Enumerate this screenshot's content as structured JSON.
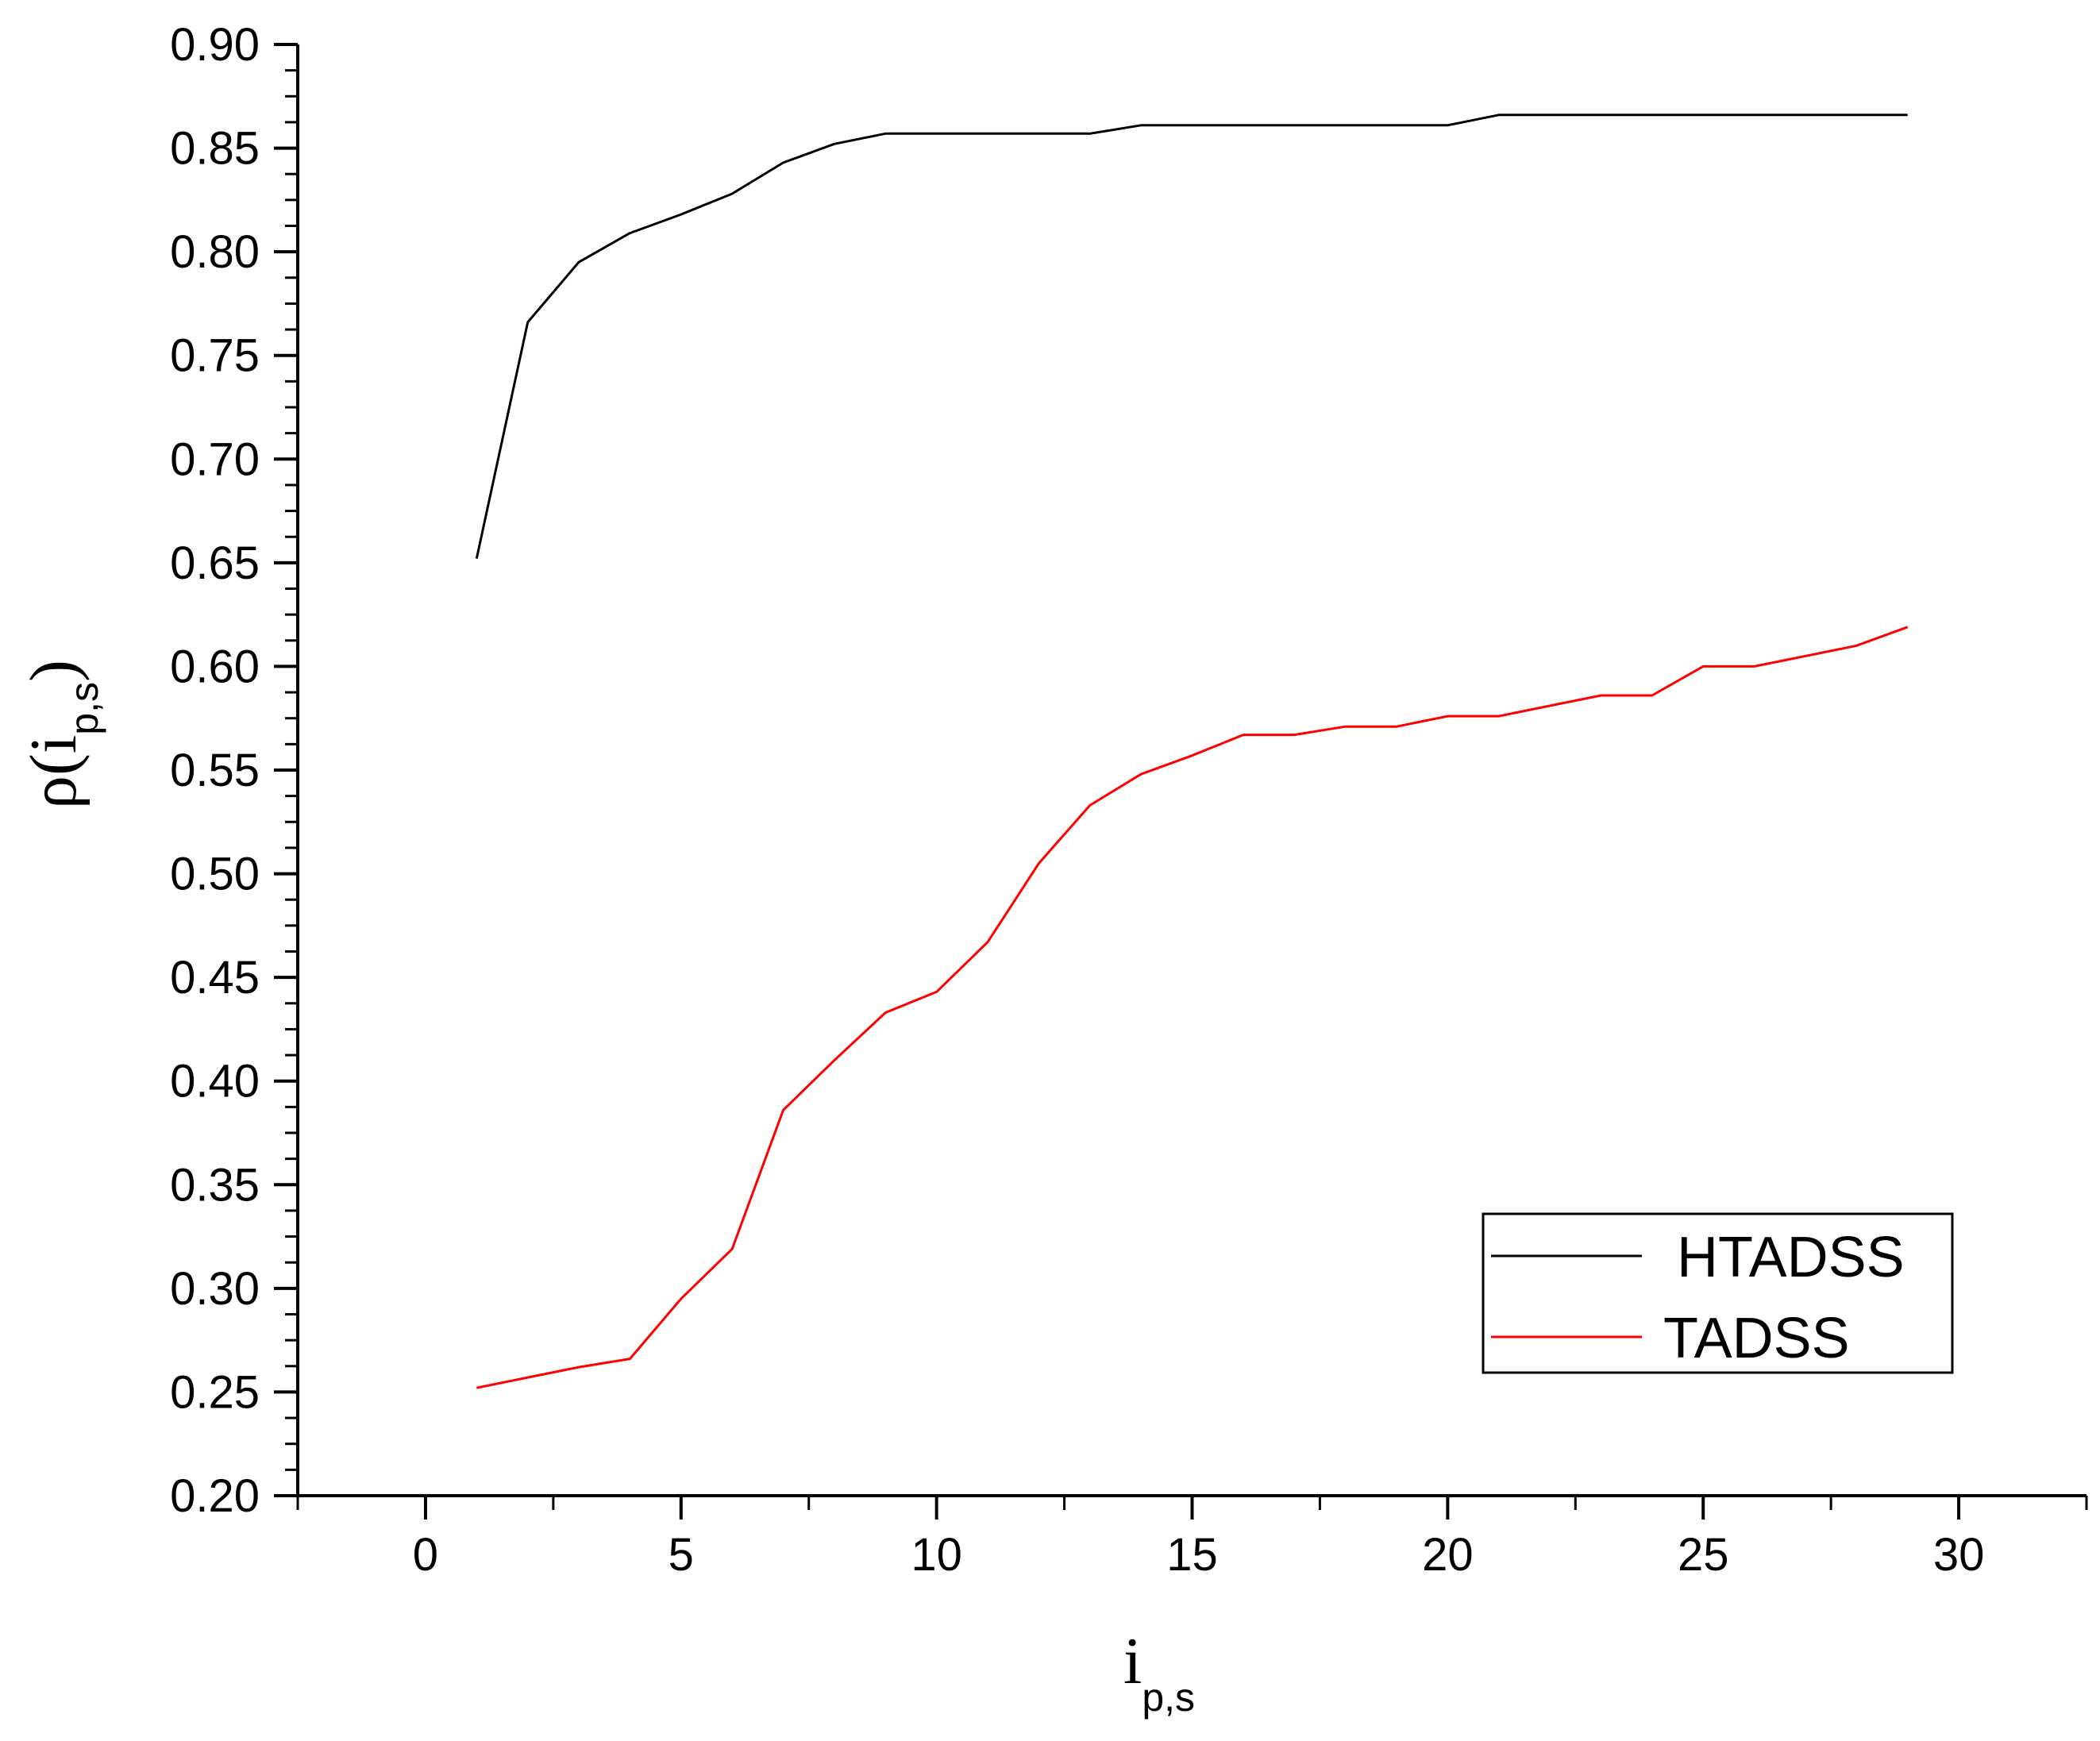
{
  "chart_data": {
    "type": "line",
    "xlabel": {
      "main": "i",
      "sub": "p,s"
    },
    "ylabel": {
      "main": "ρ(i",
      "sub": "p,s",
      "close": ")"
    },
    "xlim": [
      -2.5,
      32.5
    ],
    "ylim": [
      0.2,
      0.9
    ],
    "x_ticks": [
      0,
      5,
      10,
      15,
      20,
      25,
      30
    ],
    "x_tick_labels": [
      "0",
      "5",
      "10",
      "15",
      "20",
      "25",
      "30"
    ],
    "y_ticks": [
      0.2,
      0.25,
      0.3,
      0.35,
      0.4,
      0.45,
      0.5,
      0.55,
      0.6,
      0.65,
      0.7,
      0.75,
      0.8,
      0.85,
      0.9
    ],
    "y_tick_labels": [
      "0.20",
      "0.25",
      "0.30",
      "0.35",
      "0.40",
      "0.45",
      "0.50",
      "0.55",
      "0.60",
      "0.65",
      "0.70",
      "0.75",
      "0.80",
      "0.85",
      "0.90"
    ],
    "grid": false,
    "legend_position": "bottom-right",
    "x": [
      1,
      2,
      3,
      4,
      5,
      6,
      7,
      8,
      9,
      10,
      11,
      12,
      13,
      14,
      15,
      16,
      17,
      18,
      19,
      20,
      21,
      22,
      23,
      24,
      25,
      26,
      27,
      28,
      29
    ],
    "series": [
      {
        "name": "HTADSS",
        "color": "#000000",
        "values": [
          0.652,
          0.766,
          0.795,
          0.809,
          0.818,
          0.828,
          0.843,
          0.852,
          0.857,
          0.857,
          0.857,
          0.857,
          0.857,
          0.861,
          0.861,
          0.861,
          0.861,
          0.861,
          0.861,
          0.861,
          0.866,
          0.866,
          0.866,
          0.866,
          0.866,
          0.866,
          0.866,
          0.866,
          0.866
        ]
      },
      {
        "name": "TADSS",
        "color": "#ff0000",
        "values": [
          0.252,
          0.257,
          0.262,
          0.266,
          0.295,
          0.319,
          0.386,
          0.41,
          0.433,
          0.443,
          0.467,
          0.505,
          0.533,
          0.548,
          0.557,
          0.567,
          0.567,
          0.571,
          0.571,
          0.576,
          0.576,
          0.581,
          0.586,
          0.586,
          0.6,
          0.6,
          0.605,
          0.61,
          0.619
        ]
      }
    ]
  }
}
